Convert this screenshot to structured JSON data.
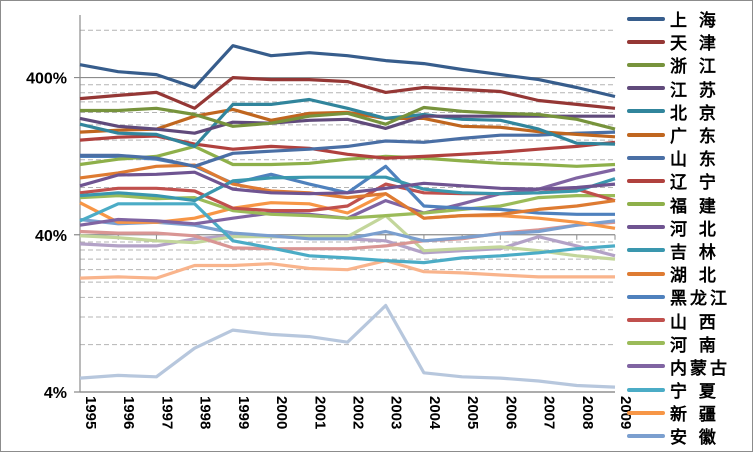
{
  "chart_data": {
    "type": "line",
    "title": "",
    "xlabel": "",
    "ylabel": "",
    "yscale": "log",
    "ylim": [
      4,
      1000
    ],
    "grid": true,
    "legend_position": "right",
    "yticks": [
      {
        "value": 4,
        "label": "4%"
      },
      {
        "value": 40,
        "label": "40%"
      },
      {
        "value": 400,
        "label": "400%"
      }
    ],
    "categories": [
      "1995",
      "1996",
      "1997",
      "1998",
      "1999",
      "2000",
      "2001",
      "2002",
      "2003",
      "2004",
      "2005",
      "2006",
      "2007",
      "2008",
      "2009"
    ],
    "series": [
      {
        "name": "上 海",
        "color": "#375D8C",
        "values": [
          483,
          436,
          418,
          346,
          638,
          551,
          576,
          551,
          513,
          491,
          450,
          418,
          388,
          346,
          303
        ]
      },
      {
        "name": "天 津",
        "color": "#953735",
        "values": [
          294,
          308,
          322,
          255,
          400,
          388,
          388,
          377,
          322,
          346,
          336,
          326,
          286,
          270,
          255
        ]
      },
      {
        "name": "浙 江",
        "color": "#77933C",
        "values": [
          247,
          247,
          255,
          233,
          196,
          205,
          227,
          237,
          202,
          258,
          244,
          237,
          233,
          217,
          188
        ]
      },
      {
        "name": "江 苏",
        "color": "#604A7B",
        "values": [
          220,
          196,
          188,
          177,
          208,
          205,
          214,
          217,
          190,
          227,
          227,
          227,
          227,
          227,
          227
        ]
      },
      {
        "name": "北 京",
        "color": "#31859C",
        "values": [
          202,
          177,
          174,
          146,
          270,
          270,
          290,
          255,
          220,
          233,
          217,
          214,
          188,
          153,
          151
        ]
      },
      {
        "name": "广 东",
        "color": "#C0661F",
        "values": [
          180,
          185,
          188,
          227,
          251,
          214,
          237,
          240,
          220,
          220,
          196,
          193,
          181,
          174,
          168
        ]
      },
      {
        "name": "山 东",
        "color": "#4A6FA5",
        "values": [
          128,
          128,
          123,
          109,
          132,
          136,
          140,
          146,
          158,
          155,
          164,
          172,
          172,
          177,
          180
        ]
      },
      {
        "name": "辽 宁",
        "color": "#B0413E",
        "values": [
          160,
          167,
          170,
          151,
          140,
          146,
          142,
          130,
          123,
          126,
          130,
          134,
          140,
          146,
          155
        ]
      },
      {
        "name": "福 建",
        "color": "#8EB04A",
        "values": [
          112,
          121,
          126,
          146,
          112,
          112,
          114,
          121,
          126,
          123,
          118,
          114,
          112,
          109,
          112
        ]
      },
      {
        "name": "河 北",
        "color": "#6F5491",
        "values": [
          82,
          96,
          97,
          100,
          78,
          74,
          73,
          74,
          79,
          85,
          82,
          79,
          78,
          80,
          84
        ]
      },
      {
        "name": "吉 林",
        "color": "#3A97AE",
        "values": [
          71,
          74,
          71,
          66,
          88,
          92,
          93,
          93,
          93,
          78,
          74,
          73,
          74,
          76,
          91
        ]
      },
      {
        "name": "湖 北",
        "color": "#DE7B32",
        "values": [
          92,
          99,
          109,
          111,
          84,
          76,
          74,
          69,
          73,
          51,
          53,
          54,
          58,
          61,
          66
        ]
      },
      {
        "name": "黑龙江",
        "color": "#4F81BD",
        "values": [
          126,
          126,
          121,
          109,
          85,
          97,
          84,
          74,
          109,
          61,
          59,
          58,
          55,
          54,
          54
        ]
      },
      {
        "name": "山 西",
        "color": "#C0504D",
        "values": [
          74,
          79,
          79,
          76,
          59,
          57,
          57,
          61,
          84,
          74,
          73,
          73,
          74,
          78,
          66
        ]
      },
      {
        "name": "河 南",
        "color": "#9BBB59",
        "values": [
          69,
          71,
          68,
          69,
          57,
          54,
          53,
          51,
          53,
          55,
          58,
          61,
          69,
          71,
          71
        ]
      },
      {
        "name": "内蒙古",
        "color": "#8064A2",
        "values": [
          46,
          50,
          49,
          47,
          51,
          55,
          54,
          51,
          66,
          55,
          63,
          73,
          78,
          92,
          104
        ]
      },
      {
        "name": "宁 夏",
        "color": "#4BACC6",
        "values": [
          49,
          63,
          63,
          63,
          36.6,
          33,
          29.4,
          28.5,
          27.4,
          26.6,
          28.5,
          29.4,
          30.7,
          32.6,
          34
        ]
      },
      {
        "name": "新 疆",
        "color": "#F79646",
        "values": [
          64,
          48,
          48,
          51,
          59,
          64,
          63,
          55,
          73,
          51,
          53,
          53,
          51,
          48,
          44
        ]
      },
      {
        "name": "安 徽",
        "color": "#7B9FCF",
        "values": [
          50,
          47,
          48,
          46,
          41,
          39.4,
          37.7,
          37.7,
          42,
          36.6,
          38.3,
          40.6,
          42,
          46,
          49
        ]
      },
      {
        "name": "",
        "color": "#D99694",
        "values": [
          42,
          41,
          41,
          39.4,
          33,
          32.6,
          32.6,
          32.6,
          34,
          36.6,
          37.7,
          41,
          43,
          46,
          48
        ]
      },
      {
        "name": "",
        "color": "#C3D69B",
        "values": [
          39.4,
          38.3,
          36.6,
          35.6,
          38.9,
          38.9,
          38.9,
          38.9,
          53,
          31.7,
          32.6,
          33.5,
          31.7,
          29.4,
          28
        ]
      },
      {
        "name": "",
        "color": "#B3A2C7",
        "values": [
          35,
          34,
          34,
          37.7,
          39.4,
          38.9,
          38.3,
          37.7,
          36.6,
          30.7,
          31.7,
          32.6,
          38.9,
          34,
          29.4
        ]
      },
      {
        "name": "",
        "color": "#F9B48C",
        "values": [
          21.2,
          21.6,
          21.2,
          25.5,
          25.5,
          26.2,
          24.4,
          24,
          27.4,
          23.3,
          22.9,
          22.2,
          21.6,
          21.6,
          21.6
        ]
      },
      {
        "name": "",
        "color": "#B7C7DD",
        "values": [
          4.9,
          5.1,
          5.0,
          7.6,
          9.9,
          9.3,
          9.0,
          8.3,
          14.2,
          5.3,
          5.0,
          4.9,
          4.7,
          4.4,
          4.3
        ]
      }
    ]
  }
}
